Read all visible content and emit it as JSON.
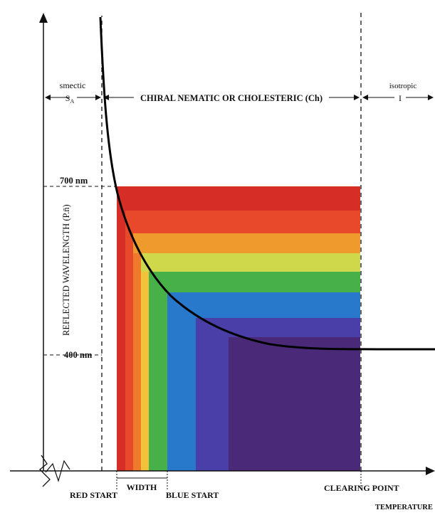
{
  "phases": {
    "smectic_label": "smectic",
    "smectic_symbol": "S",
    "smectic_subscript": "A",
    "cholesteric_label": "CHIRAL NEMATIC OR CHOLESTERIC (Ch)",
    "isotropic_label": "isotropic",
    "isotropic_symbol": "I"
  },
  "axes": {
    "y_label": "REFLECTED WAVELENGTH (P.n̄)",
    "y_tick_700": "700 nm",
    "y_tick_400": "400 nm",
    "x_label": "TEMPERATURE"
  },
  "markers": {
    "red_start": "RED START",
    "width": "WIDTH",
    "blue_start": "BLUE START",
    "clearing_point": "CLEARING POINT"
  },
  "colors": {
    "band_red": "#d62d26",
    "band_red_orange": "#e8492a",
    "band_orange": "#ef7a2c",
    "band_yellow": "#f1c33a",
    "band_yellow_green": "#c3d94a",
    "band_green": "#48b048",
    "band_blue": "#2878cc",
    "band_indigo": "#4a3fa8",
    "band_violet": "#4a2a78",
    "curve": "#000000"
  }
}
